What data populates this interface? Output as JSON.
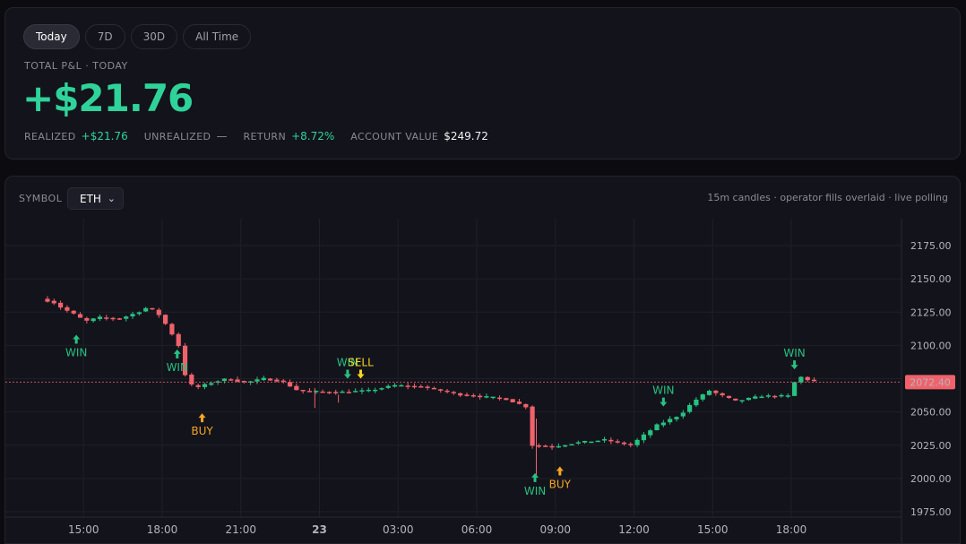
{
  "colors": {
    "up": "#26c281",
    "down": "#f0626b",
    "win": "#26c281",
    "buy": "#f5a623",
    "sell": "#f5d523",
    "accent": "#2fd39a"
  },
  "range_tabs": [
    {
      "label": "Today",
      "active": true
    },
    {
      "label": "7D",
      "active": false
    },
    {
      "label": "30D",
      "active": false
    },
    {
      "label": "All Time",
      "active": false
    }
  ],
  "pnl": {
    "label": "TOTAL P&L · TODAY",
    "value": "+$21.76",
    "stats": [
      {
        "key": "REALIZED",
        "value": "+$21.76",
        "tone": "green"
      },
      {
        "key": "UNREALIZED",
        "value": "—",
        "tone": "muted"
      },
      {
        "key": "RETURN",
        "value": "+8.72%",
        "tone": "green"
      },
      {
        "key": "ACCOUNT VALUE",
        "value": "$249.72",
        "tone": "white"
      }
    ]
  },
  "chart_panel": {
    "symbol_label": "SYMBOL",
    "symbol_value": "ETH",
    "note": "15m candles · operator fills overlaid · live polling"
  },
  "chart_data": {
    "type": "candlestick",
    "symbol": "ETH",
    "interval": "15m",
    "y_ticks": [
      2175,
      2150,
      2125,
      2100,
      2075,
      2050,
      2025,
      2000,
      1975
    ],
    "ylim": [
      1970,
      2185
    ],
    "x_ticks": [
      {
        "label": "15:00",
        "hours": 1
      },
      {
        "label": "18:00",
        "hours": 4
      },
      {
        "label": "21:00",
        "hours": 7
      },
      {
        "label": "23",
        "hours": 10,
        "bold": true
      },
      {
        "label": "03:00",
        "hours": 13
      },
      {
        "label": "06:00",
        "hours": 16
      },
      {
        "label": "09:00",
        "hours": 19
      },
      {
        "label": "12:00",
        "hours": 22
      },
      {
        "label": "15:00",
        "hours": 25
      },
      {
        "label": "18:00",
        "hours": 28
      }
    ],
    "last_price": "2072.40",
    "last_price_value": 2072.4,
    "anchors": [
      [
        -0.5,
        2135
      ],
      [
        0.0,
        2132
      ],
      [
        0.3,
        2128
      ],
      [
        0.8,
        2123
      ],
      [
        1.2,
        2118
      ],
      [
        1.7,
        2121
      ],
      [
        2.5,
        2120
      ],
      [
        3.2,
        2125
      ],
      [
        3.6,
        2129
      ],
      [
        4.0,
        2123
      ],
      [
        4.4,
        2112
      ],
      [
        4.8,
        2098
      ],
      [
        5.05,
        2073
      ],
      [
        5.4,
        2068
      ],
      [
        6.0,
        2072
      ],
      [
        6.6,
        2075
      ],
      [
        7.3,
        2072
      ],
      [
        8.0,
        2075
      ],
      [
        8.7,
        2073
      ],
      [
        9.3,
        2066
      ],
      [
        10.3,
        2065
      ],
      [
        11.0,
        2065
      ],
      [
        12.0,
        2066
      ],
      [
        13.0,
        2070
      ],
      [
        14.0,
        2069
      ],
      [
        15.5,
        2063
      ],
      [
        17.2,
        2060
      ],
      [
        18.0,
        2054
      ],
      [
        18.15,
        2025
      ],
      [
        19.0,
        2024
      ],
      [
        20.0,
        2027
      ],
      [
        21.0,
        2029
      ],
      [
        22.0,
        2025
      ],
      [
        23.0,
        2040
      ],
      [
        23.9,
        2048
      ],
      [
        24.4,
        2058
      ],
      [
        25.0,
        2066
      ],
      [
        26.0,
        2058
      ],
      [
        27.0,
        2062
      ],
      [
        28.0,
        2062
      ],
      [
        28.15,
        2069
      ],
      [
        28.4,
        2077
      ],
      [
        28.9,
        2073
      ]
    ],
    "markers": [
      {
        "label": "WIN",
        "kind": "win",
        "hours": 0.6,
        "price": 2108,
        "side": "below"
      },
      {
        "label": "WIN",
        "kind": "win",
        "hours": 4.45,
        "price": 2097,
        "side": "below"
      },
      {
        "label": "BUY",
        "kind": "buy",
        "hours": 5.4,
        "price": 2049,
        "side": "below"
      },
      {
        "label": "WIN",
        "kind": "win",
        "hours": 10.95,
        "price": 2075,
        "side": "above"
      },
      {
        "label": "SELL",
        "kind": "sell",
        "hours": 11.45,
        "price": 2075,
        "side": "above"
      },
      {
        "label": "WIN",
        "kind": "win",
        "hours": 18.1,
        "price": 2004,
        "side": "below"
      },
      {
        "label": "BUY",
        "kind": "buy",
        "hours": 19.05,
        "price": 2009,
        "side": "below"
      },
      {
        "label": "WIN",
        "kind": "win",
        "hours": 23.0,
        "price": 2054,
        "side": "above"
      },
      {
        "label": "WIN",
        "kind": "win",
        "hours": 28.0,
        "price": 2082,
        "side": "above"
      }
    ]
  }
}
